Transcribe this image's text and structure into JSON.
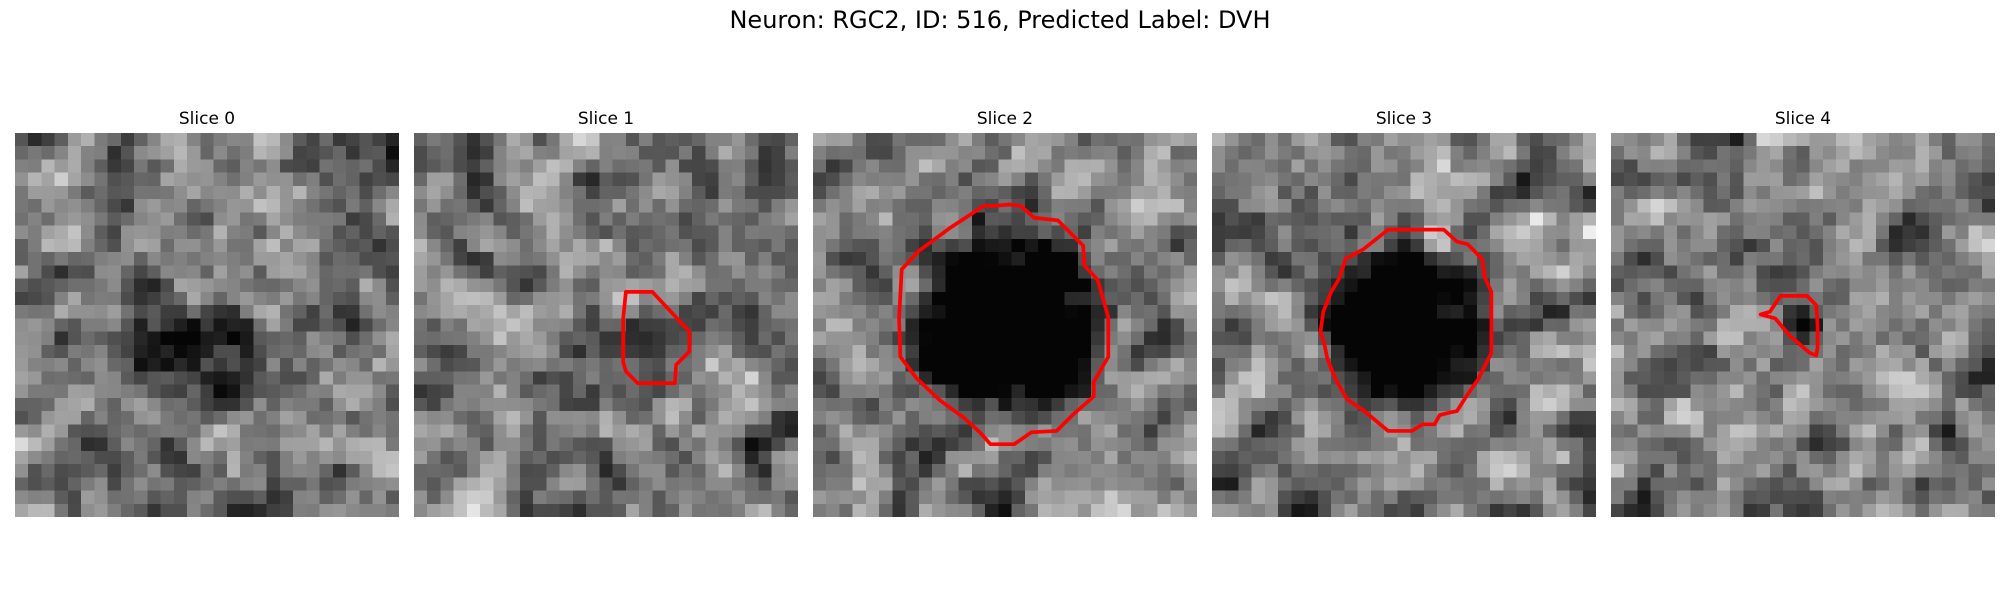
{
  "figure": {
    "title": "Neuron: RGC2, ID: 516, Predicted Label: DVH",
    "contour_color": "#ff0000",
    "grid_size": 29
  },
  "slices": [
    {
      "label": "Slice 0",
      "contour": null,
      "dark_blob": {
        "cx": 14.0,
        "cy": 17.0,
        "r": 5.5,
        "depth": 0.35
      }
    },
    {
      "label": "Slice 1",
      "contour": [
        [
          16.0,
          12.0
        ],
        [
          18.0,
          12.0
        ],
        [
          19.4,
          13.5
        ],
        [
          20.8,
          15.0
        ],
        [
          20.8,
          16.5
        ],
        [
          19.8,
          17.5
        ],
        [
          19.7,
          18.9
        ],
        [
          16.9,
          18.9
        ],
        [
          16.0,
          18.0
        ],
        [
          15.8,
          17.3
        ],
        [
          15.8,
          14.0
        ]
      ],
      "dark_blob": {
        "cx": 18.0,
        "cy": 15.5,
        "r": 3.0,
        "depth": 0.1
      }
    },
    {
      "label": "Slice 2",
      "contour": [
        [
          10.3,
          7.2
        ],
        [
          12.9,
          5.5
        ],
        [
          13.8,
          5.5
        ],
        [
          14.8,
          5.4
        ],
        [
          15.7,
          5.5
        ],
        [
          16.7,
          6.4
        ],
        [
          18.5,
          6.6
        ],
        [
          20.4,
          8.5
        ],
        [
          20.5,
          10.0
        ],
        [
          21.5,
          11.1
        ],
        [
          22.3,
          13.9
        ],
        [
          22.3,
          16.9
        ],
        [
          21.2,
          18.8
        ],
        [
          21.2,
          19.9
        ],
        [
          19.6,
          21.3
        ],
        [
          18.4,
          22.5
        ],
        [
          16.5,
          22.6
        ],
        [
          15.2,
          23.5
        ],
        [
          13.4,
          23.5
        ],
        [
          12.6,
          22.6
        ],
        [
          11.4,
          21.5
        ],
        [
          9.6,
          20.2
        ],
        [
          7.8,
          18.5
        ],
        [
          6.6,
          16.9
        ],
        [
          6.5,
          14.0
        ],
        [
          6.7,
          10.3
        ],
        [
          8.0,
          8.9
        ]
      ],
      "dark_blob": {
        "cx": 14.6,
        "cy": 14.5,
        "r": 8.2,
        "depth": 0.75
      }
    },
    {
      "label": "Slice 3",
      "contour": [
        [
          13.3,
          7.3
        ],
        [
          17.5,
          7.3
        ],
        [
          18.5,
          8.2
        ],
        [
          19.3,
          8.4
        ],
        [
          20.4,
          9.5
        ],
        [
          20.6,
          10.9
        ],
        [
          21.1,
          12.0
        ],
        [
          21.1,
          16.6
        ],
        [
          20.1,
          18.6
        ],
        [
          19.2,
          19.9
        ],
        [
          18.5,
          21.0
        ],
        [
          18.0,
          21.1
        ],
        [
          17.2,
          21.3
        ],
        [
          16.8,
          22.0
        ],
        [
          15.9,
          22.0
        ],
        [
          15.1,
          22.5
        ],
        [
          13.3,
          22.5
        ],
        [
          12.1,
          21.5
        ],
        [
          11.5,
          21.0
        ],
        [
          10.2,
          20.1
        ],
        [
          9.5,
          18.9
        ],
        [
          9.0,
          17.8
        ],
        [
          8.7,
          17.0
        ],
        [
          8.5,
          16.0
        ],
        [
          8.2,
          15.0
        ],
        [
          8.4,
          13.5
        ],
        [
          9.0,
          12.0
        ],
        [
          9.6,
          11.0
        ],
        [
          10.1,
          9.5
        ],
        [
          11.4,
          8.8
        ]
      ],
      "dark_blob": {
        "cx": 14.8,
        "cy": 14.8,
        "r": 6.9,
        "depth": 0.75
      }
    },
    {
      "label": "Slice 4",
      "contour": [
        [
          12.0,
          13.5
        ],
        [
          12.8,
          12.3
        ],
        [
          14.8,
          12.3
        ],
        [
          15.5,
          13.0
        ],
        [
          15.6,
          14.5
        ],
        [
          15.6,
          16.2
        ],
        [
          15.5,
          16.8
        ],
        [
          15.0,
          16.6
        ],
        [
          13.5,
          15.3
        ],
        [
          12.4,
          14.0
        ],
        [
          11.3,
          13.7
        ]
      ],
      "dark_blob": {
        "cx": 14.2,
        "cy": 14.2,
        "r": 2.0,
        "depth": 0.25
      }
    }
  ]
}
